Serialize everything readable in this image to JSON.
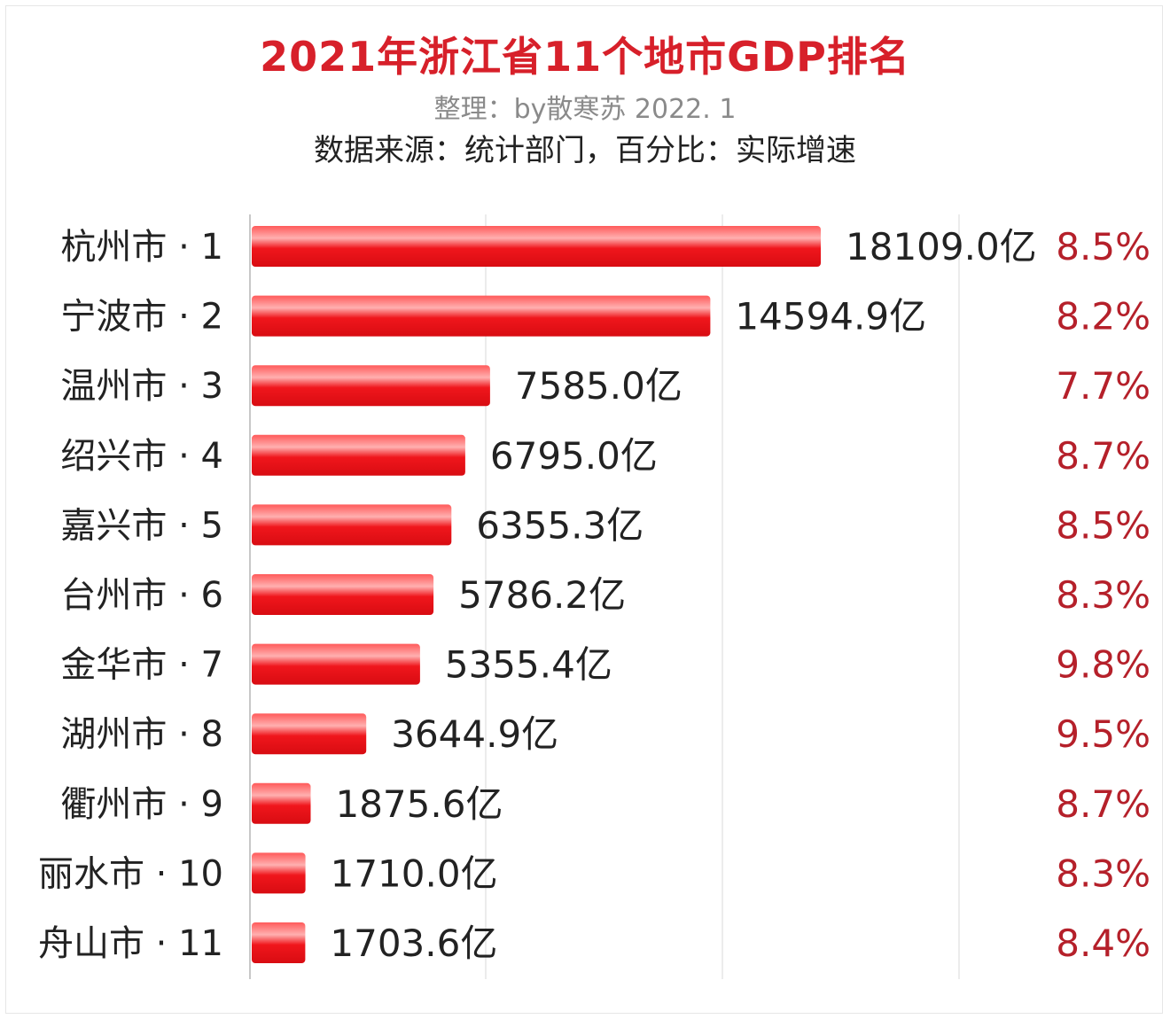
{
  "chart_data": {
    "type": "bar",
    "orientation": "horizontal",
    "title": "2021年浙江省11个地市GDP排名",
    "subtitle": "整理：by散寒苏  2022. 1",
    "source_note": "数据来源：统计部门，百分比：实际增速",
    "categories": [
      "杭州市 · 1",
      "宁波市 · 2",
      "温州市 · 3",
      "绍兴市 · 4",
      "嘉兴市 · 5",
      "台州市 · 6",
      "金华市 · 7",
      "湖州市 · 8",
      "衢州市 · 9",
      "丽水市 · 10",
      "舟山市 · 11"
    ],
    "values": [
      18109.0,
      14594.9,
      7585.0,
      6795.0,
      6355.3,
      5786.2,
      5355.4,
      3644.9,
      1875.6,
      1710.0,
      1703.6
    ],
    "value_labels": [
      "18109.0亿",
      "14594.9亿",
      "7585.0亿",
      "6795.0亿",
      "6355.3亿",
      "5786.2亿",
      "5355.4亿",
      "3644.9亿",
      "1875.6亿",
      "1710.0亿",
      "1703.6亿"
    ],
    "growth_labels": [
      "8.5%",
      "8.2%",
      "7.7%",
      "8.7%",
      "8.5%",
      "8.3%",
      "9.8%",
      "9.5%",
      "8.7%",
      "8.3%",
      "8.4%"
    ],
    "grid": true,
    "colors": {
      "bar": "#f0161c",
      "bar_highlight": "#ff7a7a",
      "title": "#d7202a",
      "growth": "#b5202a",
      "grid": "#ececec"
    }
  }
}
